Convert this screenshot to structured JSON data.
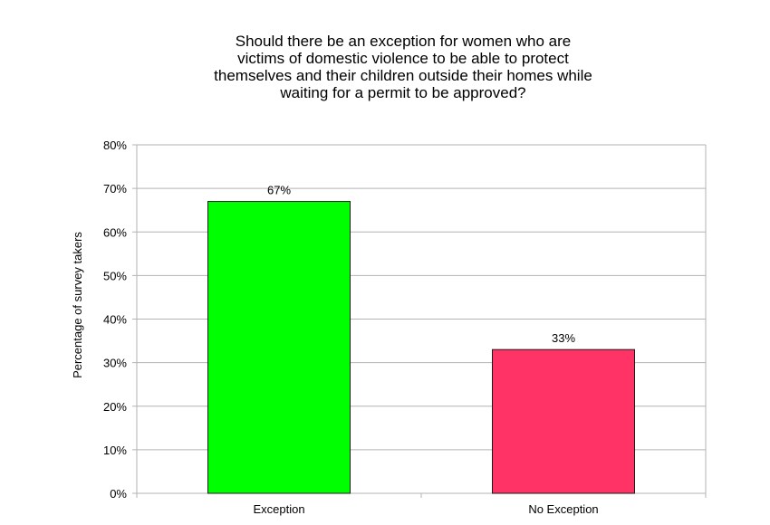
{
  "chart_data": {
    "type": "bar",
    "title_lines": [
      "Should there be an exception for women who are",
      "victims of domestic violence to be able to protect",
      "themselves and their children outside their homes while",
      "waiting for a permit to be approved?"
    ],
    "xlabel": "",
    "ylabel": "Percentage of survey takers",
    "categories": [
      "Exception",
      "No Exception"
    ],
    "values": [
      67,
      33
    ],
    "value_labels": [
      "67%",
      "33%"
    ],
    "bar_colors": [
      "#00ff00",
      "#ff3366"
    ],
    "ylim": [
      0,
      80
    ],
    "yticks": [
      0,
      10,
      20,
      30,
      40,
      50,
      60,
      70,
      80
    ],
    "ytick_labels": [
      "0%",
      "10%",
      "20%",
      "30%",
      "40%",
      "50%",
      "60%",
      "70%",
      "80%"
    ],
    "grid": true,
    "legend": "none"
  }
}
